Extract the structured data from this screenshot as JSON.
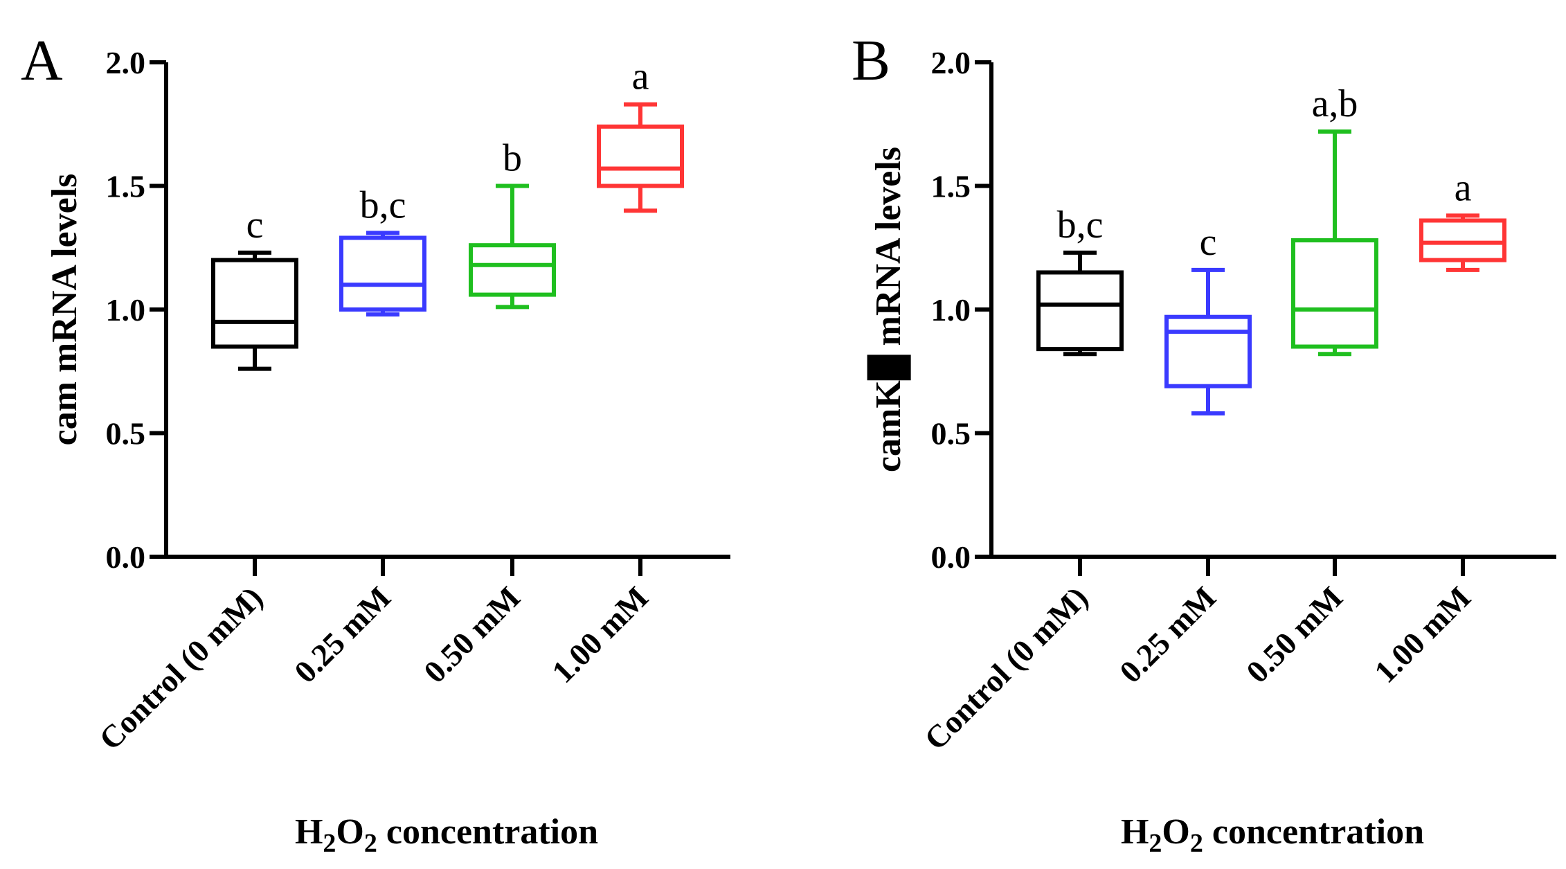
{
  "chart_data": [
    {
      "type": "box",
      "panel_label": "A",
      "ylabel": "cam mRNA levels",
      "xlabel": {
        "prefix": "H",
        "sub1": "2",
        "mid": "O",
        "sub2": "2",
        "suffix": " concentration"
      },
      "ylim": [
        0,
        2.0
      ],
      "yticks": [
        "0.0",
        "0.5",
        "1.0",
        "1.5",
        "2.0"
      ],
      "ytick_values": [
        0,
        0.5,
        1.0,
        1.5,
        2.0
      ],
      "categories": [
        "Control (0 mM)",
        "0.25 mM",
        "0.50 mM",
        "1.00 mM"
      ],
      "boxes": [
        {
          "min": 0.76,
          "q1": 0.85,
          "median": 0.95,
          "q3": 1.2,
          "max": 1.23,
          "color": "#000000",
          "letter": "c"
        },
        {
          "min": 0.98,
          "q1": 1.0,
          "median": 1.1,
          "q3": 1.29,
          "max": 1.31,
          "color": "#3a3aff",
          "letter": "b,c"
        },
        {
          "min": 1.01,
          "q1": 1.06,
          "median": 1.18,
          "q3": 1.26,
          "max": 1.5,
          "color": "#1fbf1f",
          "letter": "b"
        },
        {
          "min": 1.4,
          "q1": 1.5,
          "median": 1.57,
          "q3": 1.74,
          "max": 1.83,
          "color": "#ff3535",
          "letter": "a"
        }
      ]
    },
    {
      "type": "box",
      "panel_label": "B",
      "ylabel": "camK█ mRNA levels",
      "xlabel": {
        "prefix": "H",
        "sub1": "2",
        "mid": "O",
        "sub2": "2",
        "suffix": " concentration"
      },
      "ylim": [
        0,
        2.0
      ],
      "yticks": [
        "0.0",
        "0.5",
        "1.0",
        "1.5",
        "2.0"
      ],
      "ytick_values": [
        0,
        0.5,
        1.0,
        1.5,
        2.0
      ],
      "categories": [
        "Control (0 mM)",
        "0.25 mM",
        "0.50 mM",
        "1.00 mM"
      ],
      "boxes": [
        {
          "min": 0.82,
          "q1": 0.84,
          "median": 1.02,
          "q3": 1.15,
          "max": 1.23,
          "color": "#000000",
          "letter": "b,c"
        },
        {
          "min": 0.58,
          "q1": 0.69,
          "median": 0.91,
          "q3": 0.97,
          "max": 1.16,
          "color": "#3a3aff",
          "letter": "c"
        },
        {
          "min": 0.82,
          "q1": 0.85,
          "median": 1.0,
          "q3": 1.28,
          "max": 1.72,
          "color": "#1fbf1f",
          "letter": "a,b"
        },
        {
          "min": 1.16,
          "q1": 1.2,
          "median": 1.27,
          "q3": 1.36,
          "max": 1.38,
          "color": "#ff3535",
          "letter": "a"
        }
      ]
    }
  ]
}
